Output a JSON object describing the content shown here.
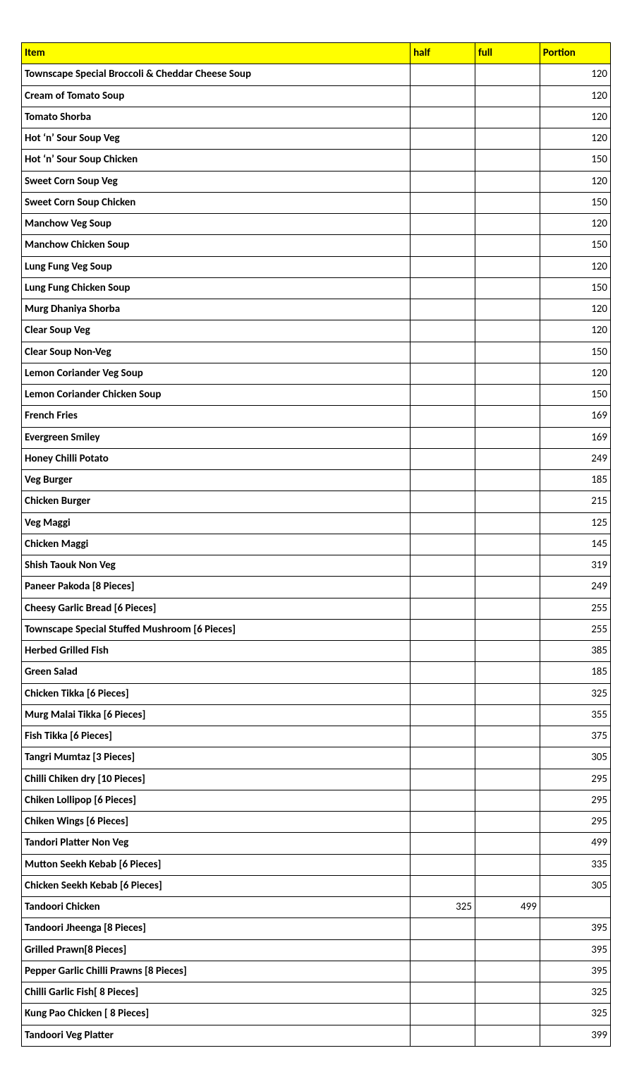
{
  "table": {
    "header_bg": "#ffff00",
    "border_color": "#000000",
    "font_family": "Calibri, Arial, sans-serif",
    "header_fontsize": 15,
    "cell_fontsize": 15,
    "columns": [
      {
        "key": "item",
        "label": "Item",
        "align": "left",
        "width_pct": 66
      },
      {
        "key": "half",
        "label": "half",
        "align": "right",
        "width_pct": 11
      },
      {
        "key": "full",
        "label": "full",
        "align": "right",
        "width_pct": 11
      },
      {
        "key": "portion",
        "label": "Portion",
        "align": "right",
        "width_pct": 12
      }
    ],
    "rows": [
      {
        "item": "Townscape Special Broccoli & Cheddar Cheese Soup",
        "half": "",
        "full": "",
        "portion": "120"
      },
      {
        "item": "Cream of Tomato Soup",
        "half": "",
        "full": "",
        "portion": "120"
      },
      {
        "item": "Tomato Shorba",
        "half": "",
        "full": "",
        "portion": "120"
      },
      {
        "item": "Hot ‘n’ Sour Soup Veg",
        "half": "",
        "full": "",
        "portion": "120"
      },
      {
        "item": "Hot ‘n’ Sour Soup Chicken",
        "half": "",
        "full": "",
        "portion": "150"
      },
      {
        "item": "Sweet Corn Soup Veg",
        "half": "",
        "full": "",
        "portion": "120"
      },
      {
        "item": "Sweet Corn Soup Chicken",
        "half": "",
        "full": "",
        "portion": "150"
      },
      {
        "item": "Manchow Veg Soup",
        "half": "",
        "full": "",
        "portion": "120"
      },
      {
        "item": "Manchow Chicken Soup",
        "half": "",
        "full": "",
        "portion": "150"
      },
      {
        "item": "Lung Fung Veg Soup",
        "half": "",
        "full": "",
        "portion": "120"
      },
      {
        "item": "Lung Fung Chicken Soup",
        "half": "",
        "full": "",
        "portion": "150"
      },
      {
        "item": "Murg Dhaniya Shorba",
        "half": "",
        "full": "",
        "portion": "120"
      },
      {
        "item": "Clear Soup Veg",
        "half": "",
        "full": "",
        "portion": "120"
      },
      {
        "item": "Clear Soup Non-Veg",
        "half": "",
        "full": "",
        "portion": "150"
      },
      {
        "item": "Lemon Coriander Veg Soup",
        "half": "",
        "full": "",
        "portion": "120"
      },
      {
        "item": "Lemon Coriander Chicken Soup",
        "half": "",
        "full": "",
        "portion": "150"
      },
      {
        "item": "French Fries",
        "half": "",
        "full": "",
        "portion": "169"
      },
      {
        "item": "Evergreen Smiley",
        "half": "",
        "full": "",
        "portion": "169"
      },
      {
        "item": "Honey Chilli Potato",
        "half": "",
        "full": "",
        "portion": "249"
      },
      {
        "item": "Veg Burger",
        "half": "",
        "full": "",
        "portion": "185"
      },
      {
        "item": "Chicken Burger",
        "half": "",
        "full": "",
        "portion": "215"
      },
      {
        "item": "Veg Maggi",
        "half": "",
        "full": "",
        "portion": "125"
      },
      {
        "item": "Chicken Maggi",
        "half": "",
        "full": "",
        "portion": "145"
      },
      {
        "item": "Shish Taouk Non Veg",
        "half": "",
        "full": "",
        "portion": "319"
      },
      {
        "item": "Paneer Pakoda [8 Pieces]",
        "half": "",
        "full": "",
        "portion": "249"
      },
      {
        "item": "Cheesy Garlic Bread [6 Pieces]",
        "half": "",
        "full": "",
        "portion": "255"
      },
      {
        "item": "Townscape Special Stuffed Mushroom [6 Pieces]",
        "half": "",
        "full": "",
        "portion": "255"
      },
      {
        "item": "Herbed Grilled Fish",
        "half": "",
        "full": "",
        "portion": "385"
      },
      {
        "item": "Green Salad",
        "half": "",
        "full": "",
        "portion": "185"
      },
      {
        "item": "Chicken Tikka [6 Pieces]",
        "half": "",
        "full": "",
        "portion": "325"
      },
      {
        "item": "Murg Malai Tikka [6 Pieces]",
        "half": "",
        "full": "",
        "portion": "355"
      },
      {
        "item": "Fish Tikka [6 Pieces]",
        "half": "",
        "full": "",
        "portion": "375"
      },
      {
        "item": "Tangri Mumtaz [3 Pieces]",
        "half": "",
        "full": "",
        "portion": "305"
      },
      {
        "item": "Chilli Chiken dry [10 Pieces]",
        "half": "",
        "full": "",
        "portion": "295"
      },
      {
        "item": "Chiken Lollipop [6 Pieces]",
        "half": "",
        "full": "",
        "portion": "295"
      },
      {
        "item": "Chiken Wings [6 Pieces]",
        "half": "",
        "full": "",
        "portion": "295"
      },
      {
        "item": "Tandori Platter Non Veg",
        "half": "",
        "full": "",
        "portion": "499"
      },
      {
        "item": "Mutton Seekh Kebab [6 Pieces]",
        "half": "",
        "full": "",
        "portion": "335"
      },
      {
        "item": "Chicken Seekh Kebab [6 Pieces]",
        "half": "",
        "full": "",
        "portion": "305"
      },
      {
        "item": "Tandoori Chicken",
        "half": "325",
        "full": "499",
        "portion": ""
      },
      {
        "item": "Tandoori Jheenga [8 Pieces]",
        "half": "",
        "full": "",
        "portion": "395"
      },
      {
        "item": "Grilled Prawn[8 Pieces]",
        "half": "",
        "full": "",
        "portion": "395"
      },
      {
        "item": "Pepper Garlic Chilli Prawns [8 Pieces]",
        "half": "",
        "full": "",
        "portion": "395"
      },
      {
        "item": "Chilli Garlic Fish[ 8 Pieces]",
        "half": "",
        "full": "",
        "portion": "325"
      },
      {
        "item": "Kung Pao Chicken [ 8 Pieces]",
        "half": "",
        "full": "",
        "portion": "325"
      },
      {
        "item": "Tandoori Veg Platter",
        "half": "",
        "full": "",
        "portion": "399"
      }
    ]
  }
}
